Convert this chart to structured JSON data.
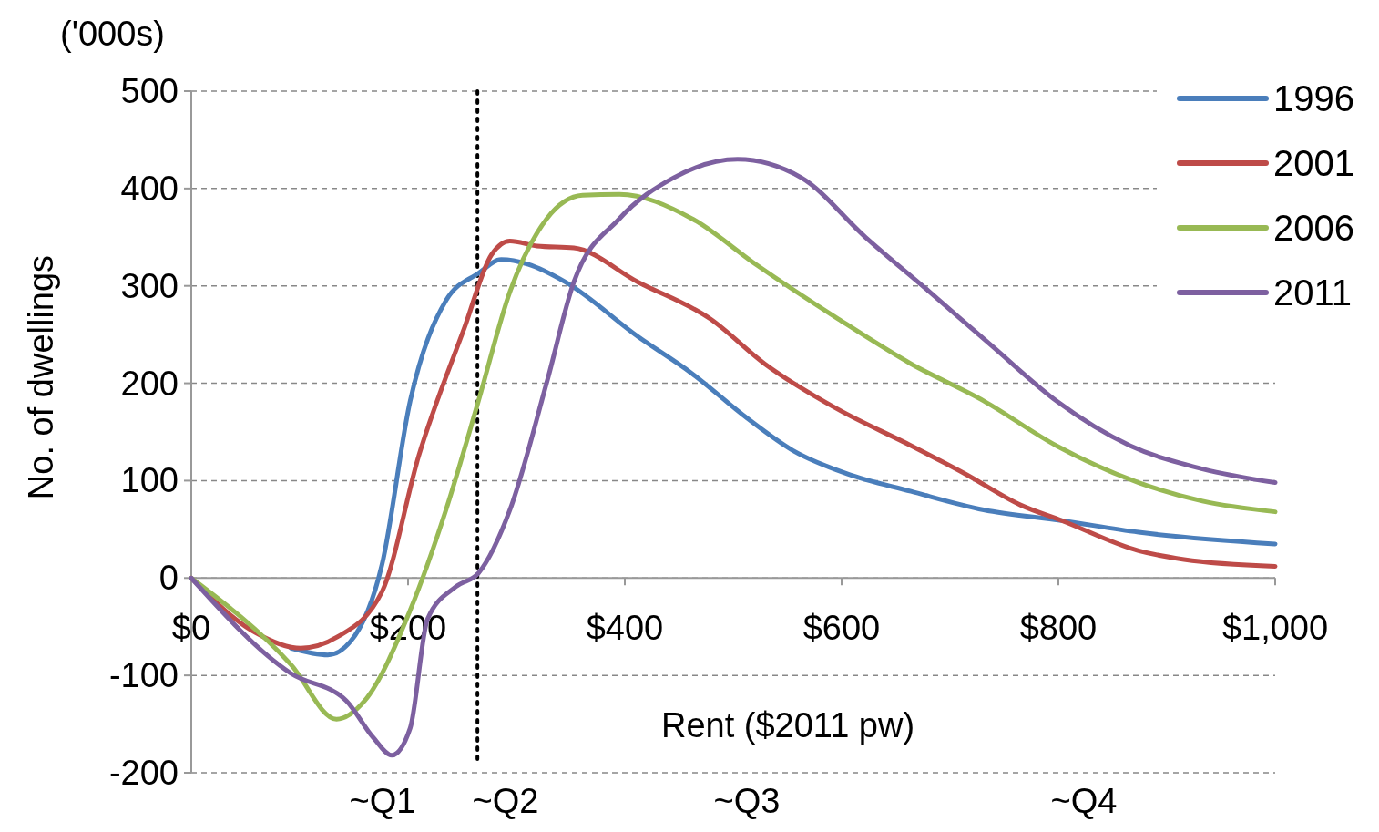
{
  "chart_data": {
    "type": "line",
    "xlabel": "Rent ($2011 pw)",
    "ylabel": "No. of dwellings",
    "xlim": [
      0,
      1000
    ],
    "ylim": [
      -200,
      500
    ],
    "xticks": [
      {
        "value": 0,
        "label": "$0"
      },
      {
        "value": 200,
        "label": "$200"
      },
      {
        "value": 400,
        "label": "$400"
      },
      {
        "value": 600,
        "label": "$600"
      },
      {
        "value": 800,
        "label": "$800"
      },
      {
        "value": 1000,
        "label": "$1,000"
      }
    ],
    "yticks": [
      -200,
      -100,
      0,
      100,
      200,
      300,
      400,
      500
    ],
    "grid": "y",
    "legend": "top right",
    "ref_lines": [
      {
        "axis": "x",
        "value": 264,
        "line_style": "dotted",
        "color": "#000000"
      }
    ],
    "annotations": [
      "('000s)",
      "~Q1",
      "~Q2",
      "~Q3",
      "~Q4"
    ],
    "series": [
      {
        "name": "1996",
        "color": "#4a7ebb",
        "x": [
          92,
          126,
          147,
          176,
          202,
          235,
          265,
          286,
          311,
          345,
          412,
          462,
          513,
          555,
          605,
          664,
          731,
          803,
          874,
          1000
        ],
        "values": [
          -72,
          -79,
          -65,
          14,
          182,
          285,
          313,
          327,
          322,
          304,
          248,
          210,
          164,
          131,
          107,
          89,
          70,
          59,
          47,
          35
        ]
      },
      {
        "name": "2001",
        "color": "#be4b48",
        "x": [
          0,
          59,
          101,
          134,
          176,
          210,
          252,
          277,
          294,
          319,
          353,
          412,
          479,
          529,
          597,
          664,
          714,
          765,
          803,
          874,
          916,
          1000
        ],
        "values": [
          0,
          -56,
          -72,
          -61,
          -14,
          126,
          257,
          332,
          346,
          341,
          339,
          304,
          266,
          220,
          173,
          136,
          107,
          75,
          59,
          28,
          19,
          12
        ]
      },
      {
        "name": "2006",
        "color": "#98b954",
        "x": [
          0,
          92,
          134,
          160,
          202,
          235,
          265,
          294,
          328,
          361,
          395,
          462,
          521,
          597,
          664,
          731,
          798,
          874,
          933,
          1000
        ],
        "values": [
          0,
          -89,
          -145,
          -126,
          -33,
          70,
          182,
          294,
          369,
          393,
          394,
          369,
          322,
          266,
          220,
          182,
          136,
          98,
          79,
          68
        ]
      },
      {
        "name": "2011",
        "color": "#7d60a0",
        "x": [
          0,
          92,
          143,
          168,
          185,
          202,
          218,
          244,
          265,
          294,
          328,
          353,
          395,
          445,
          504,
          563,
          622,
          681,
          739,
          798,
          866,
          933,
          1000
        ],
        "values": [
          0,
          -98,
          -126,
          -164,
          -182,
          -154,
          -42,
          -9,
          5,
          70,
          201,
          304,
          369,
          411,
          430,
          411,
          350,
          294,
          238,
          182,
          136,
          112,
          98
        ]
      }
    ]
  }
}
